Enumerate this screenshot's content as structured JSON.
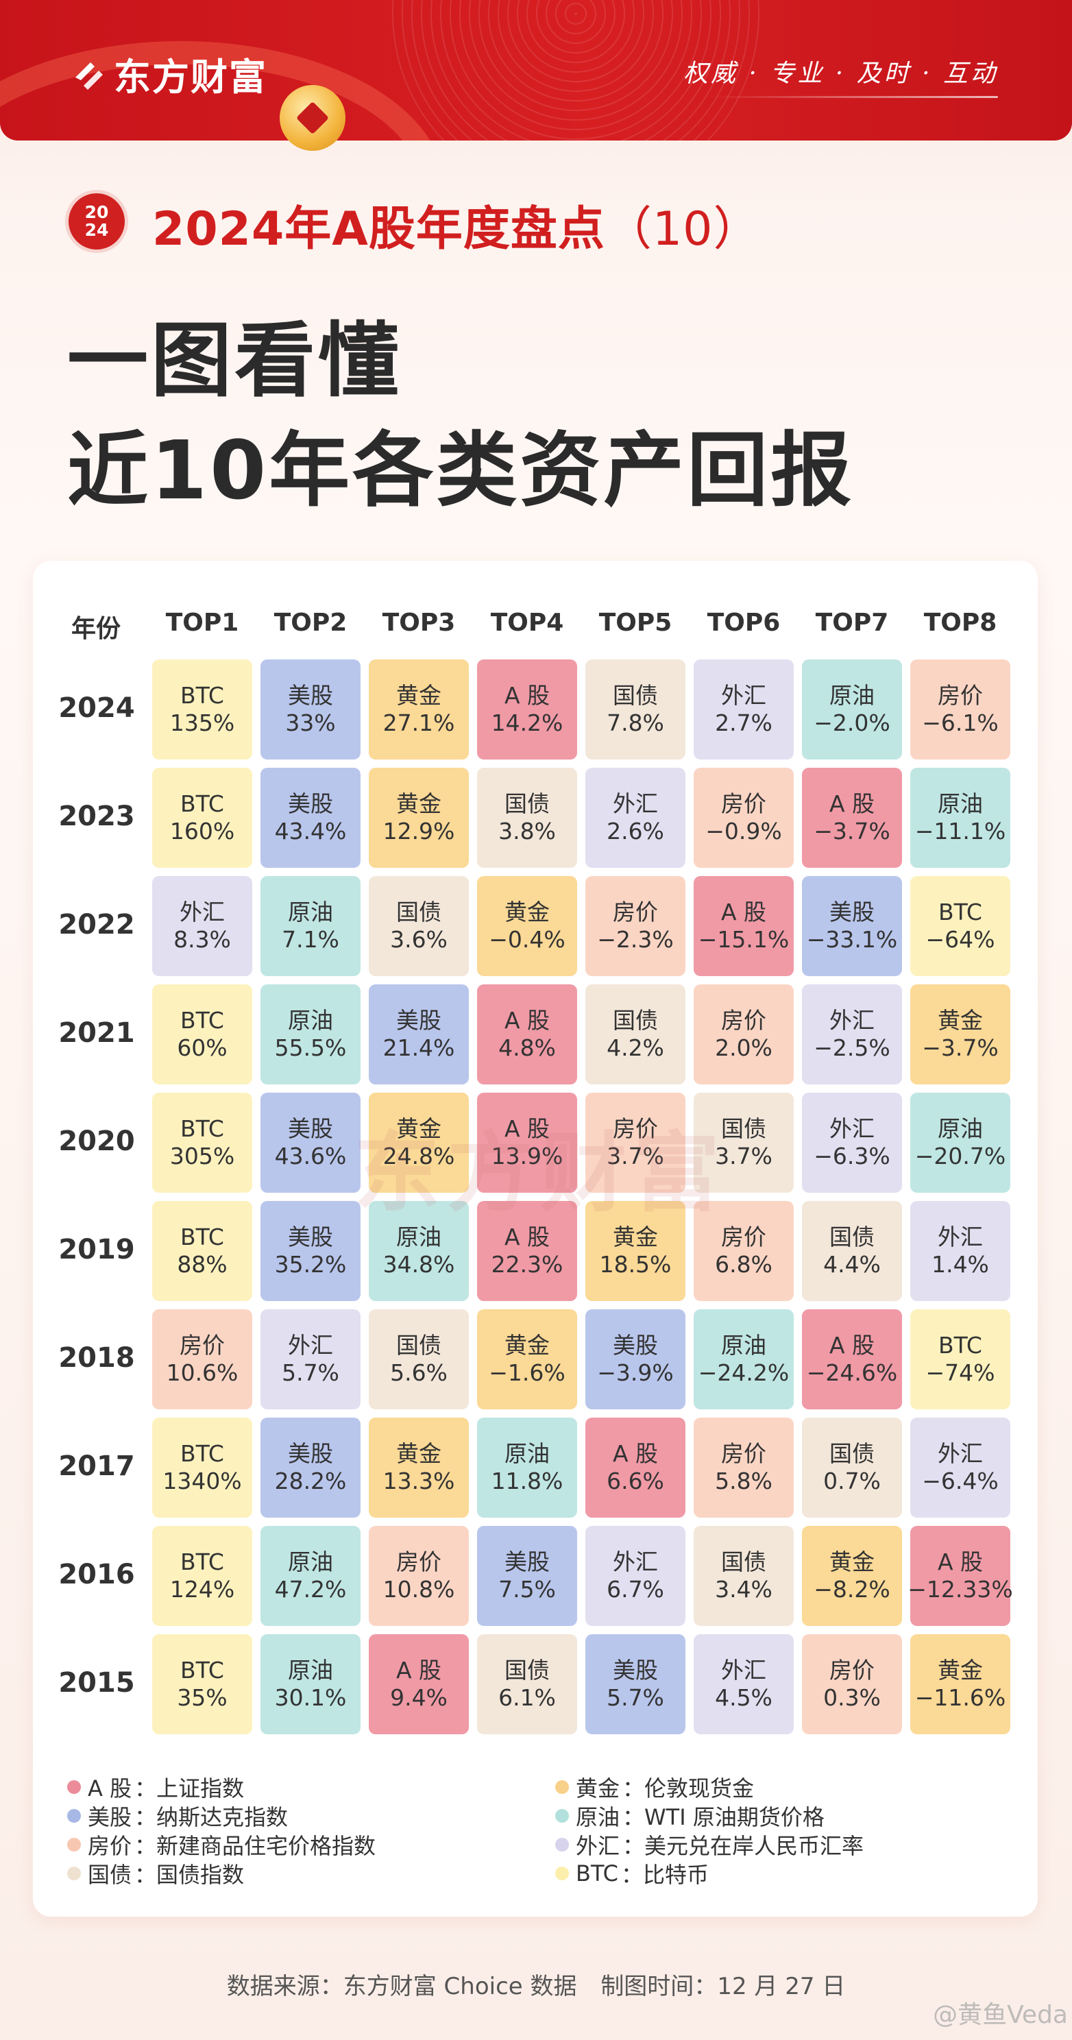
{
  "header": {
    "brand": "东方财富",
    "slogan": "权威 · 专业 · 及时 · 互动"
  },
  "badge": {
    "line1": "20",
    "line2": "24"
  },
  "subtitle": {
    "main": "2024年A股年度盘点",
    "paren_open": "（",
    "num": "10",
    "paren_close": "）"
  },
  "headline": {
    "line1": "一图看懂",
    "line2": "近10年各类资产回报"
  },
  "watermark": "东方财富",
  "table": {
    "year_header": "年份",
    "columns": [
      "TOP1",
      "TOP2",
      "TOP3",
      "TOP4",
      "TOP5",
      "TOP6",
      "TOP7",
      "TOP8"
    ],
    "rows": [
      {
        "year": "2024",
        "cells": [
          [
            "BTC",
            "135%"
          ],
          [
            "美股",
            "33%"
          ],
          [
            "黄金",
            "27.1%"
          ],
          [
            "A 股",
            "14.2%"
          ],
          [
            "国债",
            "7.8%"
          ],
          [
            "外汇",
            "2.7%"
          ],
          [
            "原油",
            "−2.0%"
          ],
          [
            "房价",
            "−6.1%"
          ]
        ]
      },
      {
        "year": "2023",
        "cells": [
          [
            "BTC",
            "160%"
          ],
          [
            "美股",
            "43.4%"
          ],
          [
            "黄金",
            "12.9%"
          ],
          [
            "国债",
            "3.8%"
          ],
          [
            "外汇",
            "2.6%"
          ],
          [
            "房价",
            "−0.9%"
          ],
          [
            "A 股",
            "−3.7%"
          ],
          [
            "原油",
            "−11.1%"
          ]
        ]
      },
      {
        "year": "2022",
        "cells": [
          [
            "外汇",
            "8.3%"
          ],
          [
            "原油",
            "7.1%"
          ],
          [
            "国债",
            "3.6%"
          ],
          [
            "黄金",
            "−0.4%"
          ],
          [
            "房价",
            "−2.3%"
          ],
          [
            "A 股",
            "−15.1%"
          ],
          [
            "美股",
            "−33.1%"
          ],
          [
            "BTC",
            "−64%"
          ]
        ]
      },
      {
        "year": "2021",
        "cells": [
          [
            "BTC",
            "60%"
          ],
          [
            "原油",
            "55.5%"
          ],
          [
            "美股",
            "21.4%"
          ],
          [
            "A 股",
            "4.8%"
          ],
          [
            "国债",
            "4.2%"
          ],
          [
            "房价",
            "2.0%"
          ],
          [
            "外汇",
            "−2.5%"
          ],
          [
            "黄金",
            "−3.7%"
          ]
        ]
      },
      {
        "year": "2020",
        "cells": [
          [
            "BTC",
            "305%"
          ],
          [
            "美股",
            "43.6%"
          ],
          [
            "黄金",
            "24.8%"
          ],
          [
            "A 股",
            "13.9%"
          ],
          [
            "房价",
            "3.7%"
          ],
          [
            "国债",
            "3.7%"
          ],
          [
            "外汇",
            "−6.3%"
          ],
          [
            "原油",
            "−20.7%"
          ]
        ]
      },
      {
        "year": "2019",
        "cells": [
          [
            "BTC",
            "88%"
          ],
          [
            "美股",
            "35.2%"
          ],
          [
            "原油",
            "34.8%"
          ],
          [
            "A 股",
            "22.3%"
          ],
          [
            "黄金",
            "18.5%"
          ],
          [
            "房价",
            "6.8%"
          ],
          [
            "国债",
            "4.4%"
          ],
          [
            "外汇",
            "1.4%"
          ]
        ]
      },
      {
        "year": "2018",
        "cells": [
          [
            "房价",
            "10.6%"
          ],
          [
            "外汇",
            "5.7%"
          ],
          [
            "国债",
            "5.6%"
          ],
          [
            "黄金",
            "−1.6%"
          ],
          [
            "美股",
            "−3.9%"
          ],
          [
            "原油",
            "−24.2%"
          ],
          [
            "A 股",
            "−24.6%"
          ],
          [
            "BTC",
            "−74%"
          ]
        ]
      },
      {
        "year": "2017",
        "cells": [
          [
            "BTC",
            "1340%"
          ],
          [
            "美股",
            "28.2%"
          ],
          [
            "黄金",
            "13.3%"
          ],
          [
            "原油",
            "11.8%"
          ],
          [
            "A 股",
            "6.6%"
          ],
          [
            "房价",
            "5.8%"
          ],
          [
            "国债",
            "0.7%"
          ],
          [
            "外汇",
            "−6.4%"
          ]
        ]
      },
      {
        "year": "2016",
        "cells": [
          [
            "BTC",
            "124%"
          ],
          [
            "原油",
            "47.2%"
          ],
          [
            "房价",
            "10.8%"
          ],
          [
            "美股",
            "7.5%"
          ],
          [
            "外汇",
            "6.7%"
          ],
          [
            "国债",
            "3.4%"
          ],
          [
            "黄金",
            "−8.2%"
          ],
          [
            "A 股",
            "−12.33%"
          ]
        ]
      },
      {
        "year": "2015",
        "cells": [
          [
            "BTC",
            "35%"
          ],
          [
            "原油",
            "30.1%"
          ],
          [
            "A 股",
            "9.4%"
          ],
          [
            "国债",
            "6.1%"
          ],
          [
            "美股",
            "5.7%"
          ],
          [
            "外汇",
            "4.5%"
          ],
          [
            "房价",
            "0.3%"
          ],
          [
            "黄金",
            "−11.6%"
          ]
        ]
      }
    ]
  },
  "asset_colors": {
    "BTC": "#fdf2be",
    "美股": "#b9c6ec",
    "黄金": "#fbd996",
    "A 股": "#f09aa6",
    "国债": "#f3e7da",
    "外汇": "#e2dff1",
    "原油": "#bfe6e3",
    "房价": "#fbd5c4"
  },
  "legend": [
    {
      "name": "A 股",
      "desc": "：上证指数",
      "color": "#ec8c9a"
    },
    {
      "name": "美股",
      "desc": "：纳斯达克指数",
      "color": "#a8b8e6"
    },
    {
      "name": "房价",
      "desc": "：新建商品住宅价格指数",
      "color": "#f8c7b2"
    },
    {
      "name": "国债",
      "desc": "：国债指数",
      "color": "#efe1d0"
    },
    {
      "name": "黄金",
      "desc": "：伦敦现货金",
      "color": "#f9d08a"
    },
    {
      "name": "原油",
      "desc": "：WTI 原油期货价格",
      "color": "#b2e0dc"
    },
    {
      "name": "外汇",
      "desc": "：美元兑在岸人民币汇率",
      "color": "#d8d3ec"
    },
    {
      "name": "BTC",
      "desc": "：比特币",
      "color": "#fcefac"
    }
  ],
  "footer": {
    "source": "数据来源：东方财富 Choice 数据",
    "date": "制图时间：12 月 27 日"
  },
  "weibo_handle": "@黄鱼Veda"
}
